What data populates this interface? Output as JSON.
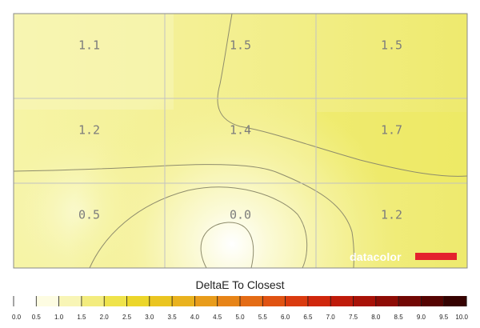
{
  "chart_data": {
    "type": "heatmap",
    "rows": 3,
    "cols": 3,
    "values": [
      [
        1.1,
        1.5,
        1.5
      ],
      [
        1.2,
        1.4,
        1.7
      ],
      [
        0.5,
        0.0,
        1.2
      ]
    ],
    "cell_labels": [
      [
        "1.1",
        "1.5",
        "1.5"
      ],
      [
        "1.2",
        "1.4",
        "1.7"
      ],
      [
        "0.5",
        "0.0",
        "1.2"
      ]
    ],
    "colorbar": {
      "title": "DeltaE To Closest",
      "range": [
        0,
        10
      ],
      "tick_step": 0.5,
      "tick_labels": [
        "0.0",
        "0.5",
        "1.0",
        "1.5",
        "2.0",
        "2.5",
        "3.0",
        "3.5",
        "4.0",
        "4.5",
        "5.0",
        "5.5",
        "6.0",
        "6.5",
        "7.0",
        "7.5",
        "8.0",
        "8.5",
        "9.0",
        "9.5",
        "10.0"
      ],
      "colors": [
        "#ffffff",
        "#fdfce2",
        "#f8f5b6",
        "#f3ec7e",
        "#efe34b",
        "#ecd62a",
        "#eac521",
        "#e9b21e",
        "#e89c1b",
        "#e78418",
        "#e46c15",
        "#e05312",
        "#da3b0f",
        "#d0270c",
        "#bf1b0a",
        "#a81207",
        "#8e0c05",
        "#720704",
        "#560402",
        "#360201",
        "#1a0000"
      ]
    },
    "grid": true,
    "contours": true,
    "logo": "datacolor"
  }
}
